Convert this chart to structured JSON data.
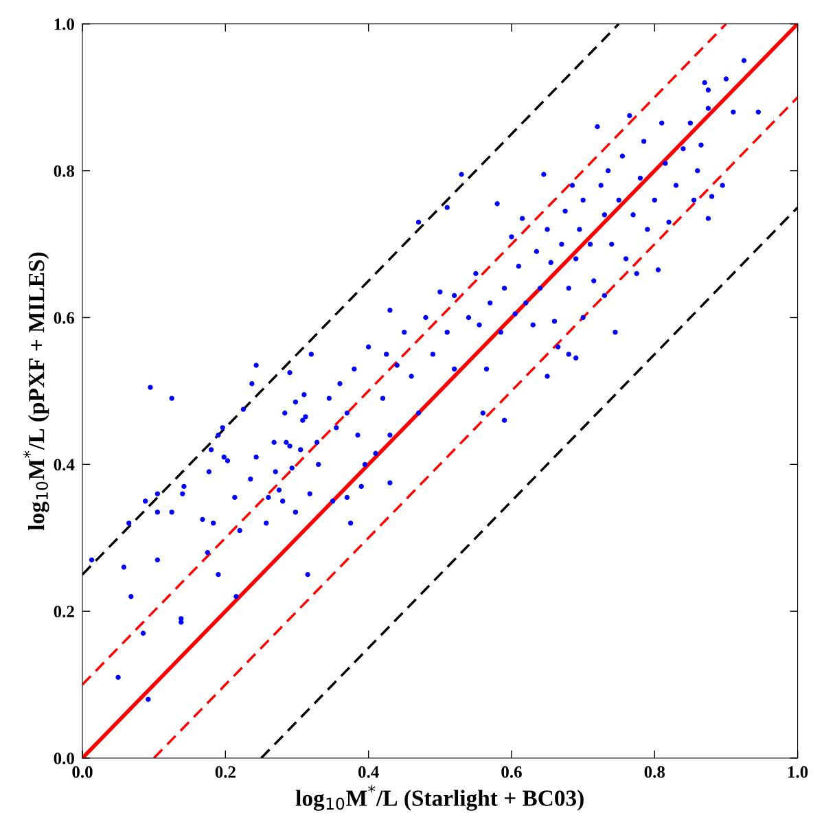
{
  "chart_data": {
    "type": "scatter",
    "xlabel": "log$_{10}$M$^{*}$/L (Starlight + BC03)",
    "ylabel": "log$_{10}$M$^{*}$/L (pPXF + MILES)",
    "xlim": [
      0,
      1
    ],
    "ylim": [
      0,
      1
    ],
    "xticks": [
      {
        "value": 0,
        "label": "0.0"
      },
      {
        "value": 0.2,
        "label": "0.2"
      },
      {
        "value": 0.4,
        "label": "0.4"
      },
      {
        "value": 0.6,
        "label": "0.6"
      },
      {
        "value": 0.8,
        "label": "0.8"
      },
      {
        "value": 1,
        "label": "1.0"
      }
    ],
    "yticks": [
      {
        "value": 0,
        "label": "0.0"
      },
      {
        "value": 0.2,
        "label": "0.2"
      },
      {
        "value": 0.4,
        "label": "0.4"
      },
      {
        "value": 0.6,
        "label": "0.6"
      },
      {
        "value": 0.8,
        "label": "0.8"
      },
      {
        "value": 1,
        "label": "1.0"
      }
    ],
    "grid": false,
    "series": [
      {
        "type": "line",
        "color": "#000000",
        "line_style": "dashed",
        "marker": "none",
        "x": [
          0,
          0.75
        ],
        "values": [
          0.25,
          1.0
        ]
      },
      {
        "type": "line",
        "color": "#000000",
        "line_style": "dashed",
        "marker": "none",
        "x": [
          0.25,
          1.0
        ],
        "values": [
          0,
          0.75
        ]
      },
      {
        "type": "line",
        "color": "#ff0000",
        "line_style": "dashed",
        "marker": "none",
        "x": [
          0,
          0.9
        ],
        "values": [
          0.1,
          1.0
        ]
      },
      {
        "type": "line",
        "color": "#ff0000",
        "line_style": "dashed",
        "marker": "none",
        "x": [
          0.1,
          1.0
        ],
        "values": [
          0,
          0.9
        ]
      },
      {
        "type": "line",
        "color": "#ff0000",
        "line_style": "solid",
        "marker": "none",
        "x": [
          0,
          1
        ],
        "values": [
          0,
          1
        ]
      },
      {
        "marker": "circle",
        "color": "#0000ff",
        "x": [
          0.013,
          0.05,
          0.058,
          0.065,
          0.068,
          0.085,
          0.088,
          0.092,
          0.095,
          0.105,
          0.105,
          0.105,
          0.125,
          0.125,
          0.138,
          0.138,
          0.14,
          0.142,
          0.168,
          0.175,
          0.177,
          0.18,
          0.183,
          0.19,
          0.19,
          0.196,
          0.198,
          0.203,
          0.213,
          0.215,
          0.22,
          0.225,
          0.235,
          0.237,
          0.243,
          0.243,
          0.257,
          0.26,
          0.268,
          0.27,
          0.275,
          0.28,
          0.283,
          0.285,
          0.29,
          0.29,
          0.293,
          0.298,
          0.298,
          0.305,
          0.308,
          0.31,
          0.312,
          0.318,
          0.315,
          0.32,
          0.328,
          0.33,
          0.345,
          0.35,
          0.355,
          0.36,
          0.37,
          0.37,
          0.375,
          0.38,
          0.385,
          0.39,
          0.395,
          0.4,
          0.41,
          0.42,
          0.425,
          0.43,
          0.43,
          0.43,
          0.44,
          0.45,
          0.46,
          0.47,
          0.47,
          0.48,
          0.49,
          0.5,
          0.51,
          0.51,
          0.52,
          0.52,
          0.53,
          0.54,
          0.55,
          0.555,
          0.56,
          0.565,
          0.57,
          0.58,
          0.585,
          0.59,
          0.59,
          0.6,
          0.605,
          0.61,
          0.615,
          0.62,
          0.63,
          0.635,
          0.64,
          0.645,
          0.65,
          0.65,
          0.655,
          0.66,
          0.665,
          0.67,
          0.675,
          0.68,
          0.68,
          0.685,
          0.69,
          0.69,
          0.695,
          0.7,
          0.7,
          0.71,
          0.715,
          0.72,
          0.725,
          0.73,
          0.73,
          0.735,
          0.74,
          0.745,
          0.75,
          0.755,
          0.76,
          0.765,
          0.77,
          0.775,
          0.78,
          0.785,
          0.79,
          0.8,
          0.805,
          0.81,
          0.815,
          0.82,
          0.83,
          0.84,
          0.85,
          0.855,
          0.86,
          0.865,
          0.87,
          0.875,
          0.875,
          0.88,
          0.895,
          0.9,
          0.91,
          0.925,
          0.945,
          0.875
        ],
        "values": [
          0.27,
          0.11,
          0.26,
          0.32,
          0.22,
          0.17,
          0.35,
          0.08,
          0.505,
          0.36,
          0.335,
          0.27,
          0.49,
          0.335,
          0.19,
          0.185,
          0.36,
          0.37,
          0.325,
          0.28,
          0.39,
          0.42,
          0.32,
          0.44,
          0.25,
          0.45,
          0.41,
          0.405,
          0.355,
          0.22,
          0.31,
          0.475,
          0.38,
          0.51,
          0.535,
          0.41,
          0.32,
          0.355,
          0.43,
          0.39,
          0.365,
          0.35,
          0.47,
          0.43,
          0.425,
          0.525,
          0.395,
          0.335,
          0.485,
          0.42,
          0.46,
          0.495,
          0.465,
          0.36,
          0.25,
          0.55,
          0.43,
          0.4,
          0.49,
          0.35,
          0.45,
          0.51,
          0.47,
          0.355,
          0.32,
          0.53,
          0.44,
          0.37,
          0.4,
          0.56,
          0.415,
          0.49,
          0.55,
          0.61,
          0.44,
          0.375,
          0.535,
          0.58,
          0.52,
          0.73,
          0.47,
          0.6,
          0.55,
          0.635,
          0.75,
          0.58,
          0.63,
          0.53,
          0.795,
          0.6,
          0.66,
          0.59,
          0.47,
          0.53,
          0.62,
          0.755,
          0.58,
          0.46,
          0.64,
          0.71,
          0.605,
          0.67,
          0.735,
          0.62,
          0.59,
          0.69,
          0.64,
          0.795,
          0.52,
          0.72,
          0.675,
          0.595,
          0.56,
          0.7,
          0.745,
          0.64,
          0.55,
          0.78,
          0.545,
          0.68,
          0.72,
          0.6,
          0.76,
          0.7,
          0.65,
          0.86,
          0.78,
          0.63,
          0.74,
          0.8,
          0.7,
          0.58,
          0.76,
          0.82,
          0.68,
          0.875,
          0.74,
          0.66,
          0.79,
          0.84,
          0.72,
          0.76,
          0.665,
          0.865,
          0.81,
          0.73,
          0.78,
          0.83,
          0.865,
          0.76,
          0.8,
          0.835,
          0.92,
          0.885,
          0.735,
          0.765,
          0.78,
          0.925,
          0.88,
          0.95,
          0.88,
          0.91
        ]
      }
    ]
  }
}
